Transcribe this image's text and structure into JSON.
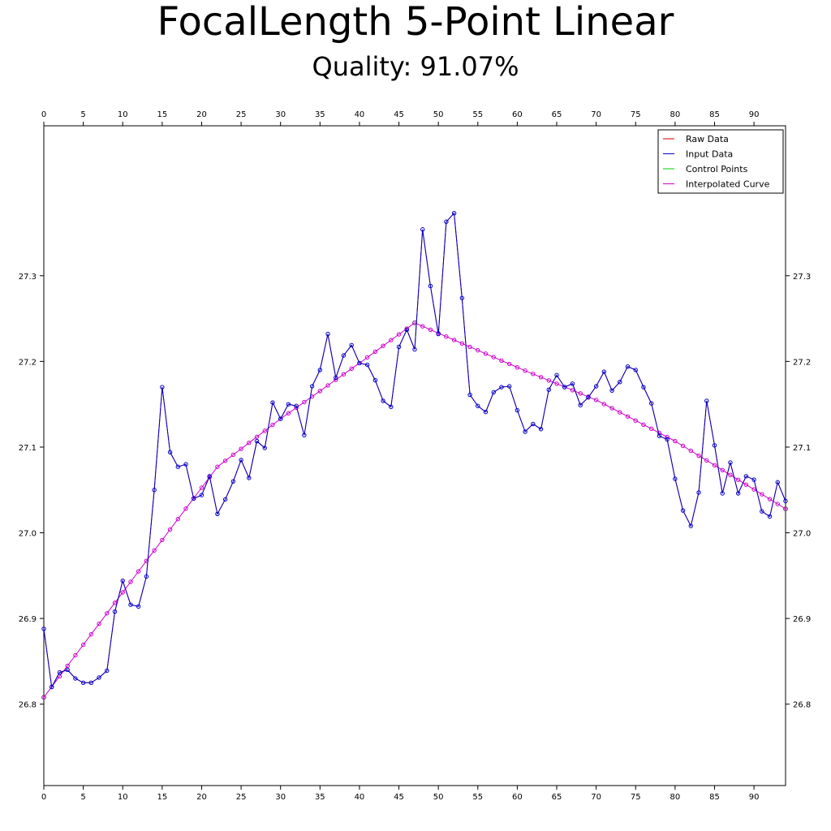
{
  "chart_data": {
    "type": "line",
    "title": "FocalLength 5-Point Linear",
    "subtitle": "Quality: 91.07%",
    "xlabel": "",
    "ylabel": "",
    "xlim": [
      0,
      94
    ],
    "ylim": [
      26.705,
      27.475
    ],
    "x_ticks": [
      0,
      5,
      10,
      15,
      20,
      25,
      30,
      35,
      40,
      45,
      50,
      55,
      60,
      65,
      70,
      75,
      80,
      85,
      90
    ],
    "y_ticks": [
      26.8,
      26.9,
      27.0,
      27.1,
      27.2,
      27.3
    ],
    "y_tick_labels": [
      "26.8",
      "26.9",
      "27.0",
      "27.1",
      "27.2",
      "27.3"
    ],
    "grid": false,
    "legend_position": "top-right",
    "legend": [
      {
        "label": "Raw Data",
        "color": "#cc0000"
      },
      {
        "label": "Input Data",
        "color": "#0000cc"
      },
      {
        "label": "Control Points",
        "color": "#00cc00"
      },
      {
        "label": "Interpolated Curve",
        "color": "#cc00cc"
      }
    ],
    "series": [
      {
        "key": "raw",
        "color": "#cc0000",
        "values": [
          26.888,
          26.82,
          26.837,
          26.84,
          26.83,
          26.825,
          26.825,
          26.831,
          26.839,
          26.908,
          26.944,
          26.916,
          26.914,
          26.949,
          27.05,
          27.17,
          27.094,
          27.077,
          27.08,
          27.04,
          27.044,
          27.066,
          27.022,
          27.039,
          27.06,
          27.085,
          27.064,
          27.107,
          27.099,
          27.152,
          27.133,
          27.15,
          27.148,
          27.114,
          27.171,
          27.19,
          27.232,
          27.181,
          27.207,
          27.219,
          27.198,
          27.196,
          27.178,
          27.154,
          27.147,
          27.217,
          27.237,
          27.214,
          27.354,
          27.288,
          27.232,
          27.363,
          27.373,
          27.274,
          27.161,
          27.148,
          27.141,
          27.164,
          27.17,
          27.171,
          27.143,
          27.118,
          27.127,
          27.121,
          27.167,
          27.184,
          27.17,
          27.174,
          27.149,
          27.158,
          27.171,
          27.188,
          27.166,
          27.176,
          27.194,
          27.19,
          27.17,
          27.151,
          27.113,
          27.109,
          27.063,
          27.026,
          27.008,
          27.047,
          27.154,
          27.102,
          27.046,
          27.082,
          27.046,
          27.066,
          27.062,
          27.025,
          27.019,
          27.059,
          27.037
        ]
      },
      {
        "key": "input",
        "color": "#0000cc",
        "values": [
          26.888,
          26.82,
          26.837,
          26.84,
          26.83,
          26.825,
          26.825,
          26.831,
          26.839,
          26.908,
          26.944,
          26.916,
          26.914,
          26.949,
          27.05,
          27.17,
          27.094,
          27.077,
          27.08,
          27.04,
          27.044,
          27.066,
          27.022,
          27.039,
          27.06,
          27.085,
          27.064,
          27.107,
          27.099,
          27.152,
          27.133,
          27.15,
          27.148,
          27.114,
          27.171,
          27.19,
          27.232,
          27.181,
          27.207,
          27.219,
          27.198,
          27.196,
          27.178,
          27.154,
          27.147,
          27.217,
          27.237,
          27.214,
          27.354,
          27.288,
          27.232,
          27.363,
          27.373,
          27.274,
          27.161,
          27.148,
          27.141,
          27.164,
          27.17,
          27.171,
          27.143,
          27.118,
          27.127,
          27.121,
          27.167,
          27.184,
          27.17,
          27.174,
          27.149,
          27.158,
          27.171,
          27.188,
          27.166,
          27.176,
          27.194,
          27.19,
          27.17,
          27.151,
          27.113,
          27.109,
          27.063,
          27.026,
          27.008,
          27.047,
          27.154,
          27.102,
          27.046,
          27.082,
          27.046,
          27.066,
          27.062,
          27.025,
          27.019,
          27.059,
          27.037
        ]
      },
      {
        "key": "control",
        "color": "#00cc00",
        "points": [
          [
            0,
            26.808
          ],
          [
            47,
            27.245
          ],
          [
            94,
            27.028
          ]
        ]
      },
      {
        "key": "curve",
        "color": "#cc00cc",
        "knots": [
          [
            0,
            26.808
          ],
          [
            12,
            26.955
          ],
          [
            22,
            27.077
          ],
          [
            30,
            27.133
          ],
          [
            40,
            27.198
          ],
          [
            47,
            27.245
          ],
          [
            60,
            27.193
          ],
          [
            70,
            27.155
          ],
          [
            80,
            27.107
          ],
          [
            94,
            27.028
          ]
        ],
        "x_count": 95
      }
    ]
  }
}
